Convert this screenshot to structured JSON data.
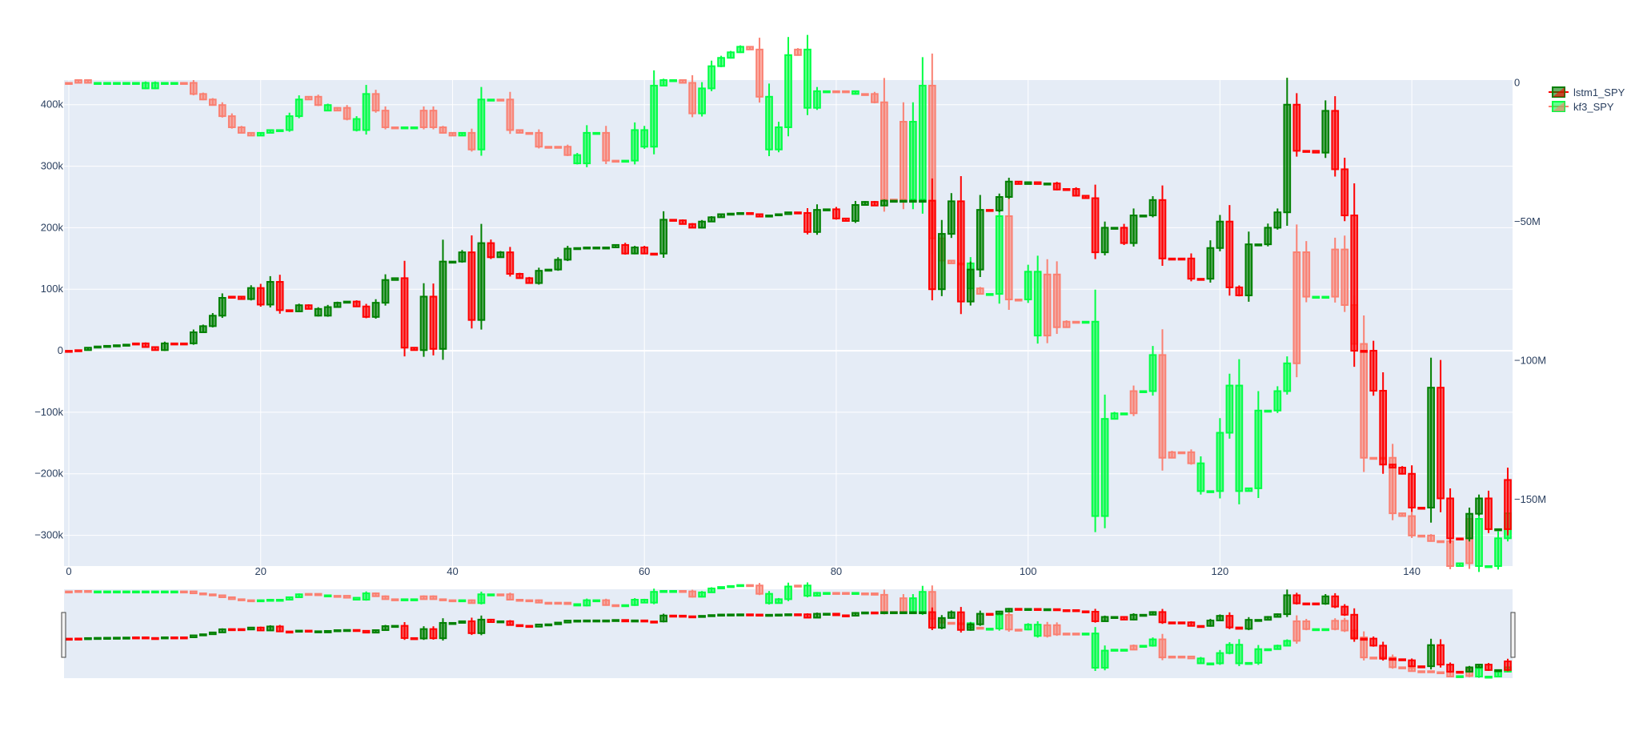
{
  "chart_data": {
    "type": "candlestick",
    "title": "",
    "xlabel": "",
    "ylabel": "",
    "x_range": [
      -0.5,
      150.5
    ],
    "x_ticks": [
      0,
      20,
      40,
      60,
      80,
      100,
      120,
      140
    ],
    "y_left": {
      "range": [
        -350000,
        440000
      ],
      "ticks": [
        {
          "value": 400000,
          "label": "400k"
        },
        {
          "value": 300000,
          "label": "300k"
        },
        {
          "value": 200000,
          "label": "200k"
        },
        {
          "value": 100000,
          "label": "100k"
        },
        {
          "value": 0,
          "label": "0"
        },
        {
          "value": -100000,
          "label": "−100k"
        },
        {
          "value": -200000,
          "label": "−200k"
        },
        {
          "value": -300000,
          "label": "−300k"
        }
      ]
    },
    "y_right": {
      "range": [
        -174000000,
        1000000
      ],
      "ticks": [
        {
          "value": 0,
          "label": "0"
        },
        {
          "value": -50000000,
          "label": "−50M"
        },
        {
          "value": -100000000,
          "label": "−100M"
        },
        {
          "value": -150000000,
          "label": "−150M"
        }
      ]
    },
    "grid": true,
    "legend_placement": "top-right",
    "rangeslider": true,
    "colors": {
      "plot_bg": "#e5ecf6",
      "grid": "#ffffff",
      "s1_inc": "#008000",
      "s1_dec": "#ff0000",
      "s2_inc": "#00ff44",
      "s2_dec": "#fa8072"
    },
    "series": [
      {
        "name": "lstm1_SPY",
        "axis": "left",
        "close": [
          0,
          1000,
          5000,
          7000,
          8000,
          9000,
          10000,
          12000,
          6000,
          1000,
          12000,
          12000,
          12000,
          30000,
          40000,
          57000,
          86000,
          88000,
          84000,
          102000,
          75000,
          112000,
          66000,
          64000,
          74000,
          68000,
          57000,
          71000,
          78000,
          80000,
          72000,
          55000,
          78000,
          115000,
          118000,
          5000,
          1000,
          88000,
          3000,
          145000,
          145000,
          160000,
          50000,
          175000,
          152000,
          160000,
          125000,
          118000,
          110000,
          130000,
          132000,
          148000,
          166000,
          167000,
          168000,
          168000,
          168000,
          172000,
          158000,
          168000,
          158000,
          158000,
          213000,
          212000,
          206000,
          200000,
          210000,
          217000,
          222000,
          223000,
          224000,
          222000,
          218000,
          220000,
          222000,
          225000,
          224000,
          193000,
          229000,
          230000,
          215000,
          211000,
          237000,
          242000,
          236000,
          244000,
          244000,
          244000,
          244000,
          244000,
          100000,
          190000,
          243000,
          80000,
          132000,
          229000,
          228000,
          250000,
          275000,
          271000,
          274000,
          271000,
          272000,
          262000,
          263000,
          252000,
          248000,
          160000,
          200000,
          200000,
          175000,
          220000,
          220000,
          245000,
          150000,
          150000,
          150000,
          117000,
          117000,
          167000,
          210000,
          103000,
          90000,
          173000,
          173000,
          200000,
          225000,
          400000,
          325000,
          325000,
          322000,
          390000,
          295000,
          220000,
          0,
          0,
          -65000,
          -185000,
          -190000,
          -200000,
          -255000,
          -255000,
          -60000,
          -240000,
          -305000,
          -305000,
          -265000,
          -240000,
          -290000,
          -290000,
          -210000
        ],
        "dirs": [
          "d",
          "d",
          "i",
          "i",
          "i",
          "i",
          "i",
          "d",
          "d",
          "d",
          "i",
          "d",
          "d",
          "i",
          "i",
          "i",
          "i",
          "d",
          "d",
          "i",
          "d",
          "i",
          "d",
          "d",
          "i",
          "d",
          "i",
          "i",
          "i",
          "i",
          "d",
          "d",
          "i",
          "i",
          "i",
          "d",
          "d",
          "i",
          "d",
          "i",
          "i",
          "i",
          "d",
          "i",
          "d",
          "i",
          "d",
          "d",
          "d",
          "i",
          "i",
          "i",
          "i",
          "i",
          "i",
          "i",
          "i",
          "i",
          "d",
          "i",
          "d",
          "d",
          "i",
          "d",
          "d",
          "d",
          "i",
          "i",
          "i",
          "i",
          "i",
          "d",
          "d",
          "i",
          "i",
          "i",
          "d",
          "d",
          "i",
          "i",
          "d",
          "d",
          "i",
          "i",
          "d",
          "i",
          "i",
          "i",
          "i",
          "i",
          "d",
          "i",
          "i",
          "d",
          "i",
          "i",
          "d",
          "i",
          "i",
          "d",
          "i",
          "d",
          "i",
          "d",
          "d",
          "d",
          "d",
          "d",
          "i",
          "i",
          "d",
          "i",
          "i",
          "i",
          "d",
          "d",
          "d",
          "d",
          "d",
          "i",
          "i",
          "d",
          "d",
          "i",
          "i",
          "i",
          "i",
          "i",
          "d",
          "d",
          "d",
          "i",
          "d",
          "d",
          "d",
          "d",
          "d",
          "d",
          "d",
          "d",
          "d",
          "d",
          "i",
          "d",
          "d",
          "d",
          "i",
          "i",
          "d",
          "i",
          "d"
        ]
      },
      {
        "name": "kf3_SPY",
        "axis": "right",
        "close": [
          0,
          1000000,
          0,
          0,
          0,
          0,
          0,
          0,
          -2000000,
          0,
          0,
          0,
          0,
          -4000000,
          -6000000,
          -8000000,
          -12000000,
          -16000000,
          -18000000,
          -19000000,
          -18000000,
          -17000000,
          -17000000,
          -12000000,
          -6000000,
          -5000000,
          -8000000,
          -10000000,
          -9000000,
          -13000000,
          -17000000,
          -4000000,
          -10000000,
          -16000000,
          -16000000,
          -16000000,
          -16000000,
          -10000000,
          -16000000,
          -18000000,
          -19000000,
          -18000000,
          -24000000,
          -6000000,
          -6000000,
          -6000000,
          -17000000,
          -18000000,
          -18000000,
          -23000000,
          -23000000,
          -23000000,
          -26000000,
          -29000000,
          -18000000,
          -18000000,
          -28000000,
          -28000000,
          -28000000,
          -17000000,
          -23000000,
          -1000000,
          1000000,
          1000000,
          0,
          -11000000,
          -2000000,
          6000000,
          9000000,
          11000000,
          13000000,
          12000000,
          -5000000,
          -24000000,
          -16000000,
          10000000,
          12000000,
          -9000000,
          -3000000,
          -3000000,
          -3000000,
          -3000000,
          -4000000,
          -4000000,
          -7000000,
          -42000000,
          -42000000,
          -14000000,
          -42000000,
          -1000000,
          -56000000,
          -64000000,
          -65000000,
          -65000000,
          -74000000,
          -76000000,
          -76000000,
          -48000000,
          -78000000,
          -78000000,
          -68000000,
          -91000000,
          -69000000,
          -88000000,
          -86000000,
          -86000000,
          -86000000,
          -156000000,
          -121000000,
          -119000000,
          -119000000,
          -111000000,
          -111000000,
          -98000000,
          -135000000,
          -133000000,
          -133000000,
          -137000000,
          -147000000,
          -147000000,
          -126000000,
          -109000000,
          -147000000,
          -146000000,
          -118000000,
          -118000000,
          -111000000,
          -101000000,
          -61000000,
          -77000000,
          -77000000,
          -77000000,
          -60000000,
          -80000000,
          -94000000,
          -135000000,
          -135000000,
          -135000000,
          -155000000,
          -156000000,
          -163000000,
          -163000000,
          -165000000,
          -165000000,
          -174000000,
          -173000000,
          -157000000,
          -174000000,
          -174000000,
          -164000000,
          -155000000
        ],
        "dirs": [
          "d",
          "d",
          "d",
          "i",
          "i",
          "i",
          "i",
          "i",
          "i",
          "i",
          "i",
          "i",
          "d",
          "d",
          "d",
          "d",
          "d",
          "d",
          "d",
          "d",
          "i",
          "i",
          "i",
          "i",
          "i",
          "d",
          "d",
          "i",
          "d",
          "d",
          "i",
          "i",
          "d",
          "d",
          "d",
          "i",
          "i",
          "d",
          "d",
          "d",
          "d",
          "i",
          "d",
          "i",
          "i",
          "d",
          "d",
          "d",
          "d",
          "d",
          "d",
          "d",
          "d",
          "i",
          "i",
          "i",
          "d",
          "d",
          "i",
          "i",
          "i",
          "i",
          "i",
          "i",
          "d",
          "d",
          "i",
          "i",
          "i",
          "i",
          "i",
          "d",
          "d",
          "i",
          "i",
          "i",
          "d",
          "i",
          "i",
          "i",
          "d",
          "d",
          "i",
          "d",
          "d",
          "d",
          "d",
          "d",
          "i",
          "i",
          "d",
          "d",
          "d",
          "d",
          "i",
          "d",
          "i",
          "i",
          "d",
          "d",
          "i",
          "i",
          "d",
          "d",
          "d",
          "d",
          "i",
          "i",
          "i",
          "i",
          "i",
          "d",
          "i",
          "i",
          "d",
          "d",
          "d",
          "d",
          "i",
          "i",
          "i",
          "i",
          "i",
          "i",
          "i",
          "i",
          "i",
          "i",
          "d",
          "d",
          "i",
          "i",
          "d",
          "d",
          "d",
          "d",
          "d",
          "d",
          "d",
          "d",
          "d",
          "d",
          "d",
          "d",
          "d",
          "i",
          "d",
          "i",
          "i",
          "i",
          "i"
        ]
      }
    ]
  },
  "legend": {
    "entries": [
      {
        "name": "lstm1_SPY"
      },
      {
        "name": "kf3_SPY"
      }
    ]
  }
}
